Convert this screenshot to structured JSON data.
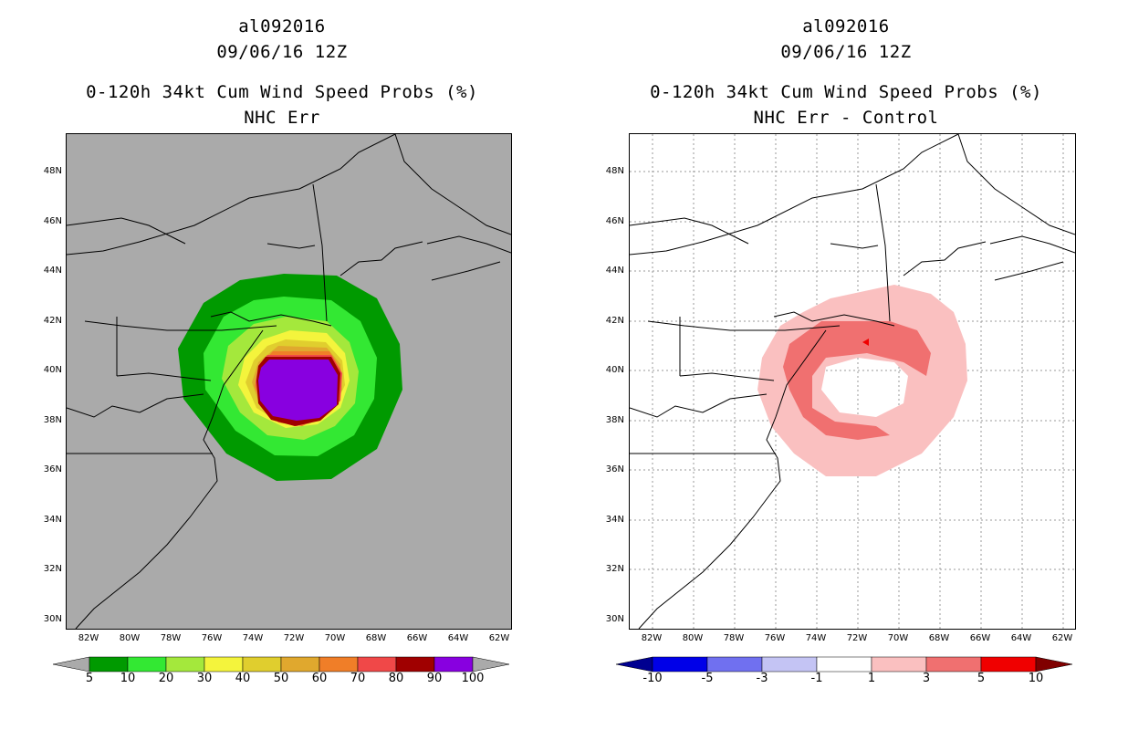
{
  "left": {
    "title_storm": "al092016",
    "title_time": "09/06/16 12Z",
    "title_product": "0-120h 34kt Cum Wind Speed Probs (%)",
    "title_sub": "NHC Err",
    "colorbar": {
      "labels": [
        "5",
        "10",
        "20",
        "30",
        "40",
        "50",
        "60",
        "70",
        "80",
        "90",
        "100"
      ],
      "colors": [
        "#009a00",
        "#33e833",
        "#a4e83c",
        "#f4f43c",
        "#e0ce2e",
        "#e0a82e",
        "#f07e28",
        "#f04848",
        "#a00000",
        "#8800e0"
      ],
      "under_color": "#aaaaaa",
      "over_color": "#aaaaaa"
    },
    "background": "#aaaaaa"
  },
  "right": {
    "title_storm": "al092016",
    "title_time": "09/06/16 12Z",
    "title_product": "0-120h 34kt Cum Wind Speed Probs (%)",
    "title_sub": "NHC Err - Control",
    "colorbar": {
      "labels": [
        "-10",
        "-5",
        "-3",
        "-1",
        "1",
        "3",
        "5",
        "10"
      ],
      "colors": [
        "#0000e8",
        "#7070f0",
        "#c4c4f4",
        "#ffffff",
        "#fac0c0",
        "#f07070",
        "#f00000"
      ],
      "under_color": "#000090",
      "over_color": "#800000"
    },
    "background": "#ffffff"
  },
  "axes": {
    "lat_labels": [
      "48N",
      "46N",
      "44N",
      "42N",
      "40N",
      "38N",
      "36N",
      "34N",
      "32N",
      "30N"
    ],
    "lon_labels": [
      "82W",
      "80W",
      "78W",
      "76W",
      "74W",
      "72W",
      "70W",
      "68W",
      "66W",
      "64W",
      "62W"
    ]
  }
}
